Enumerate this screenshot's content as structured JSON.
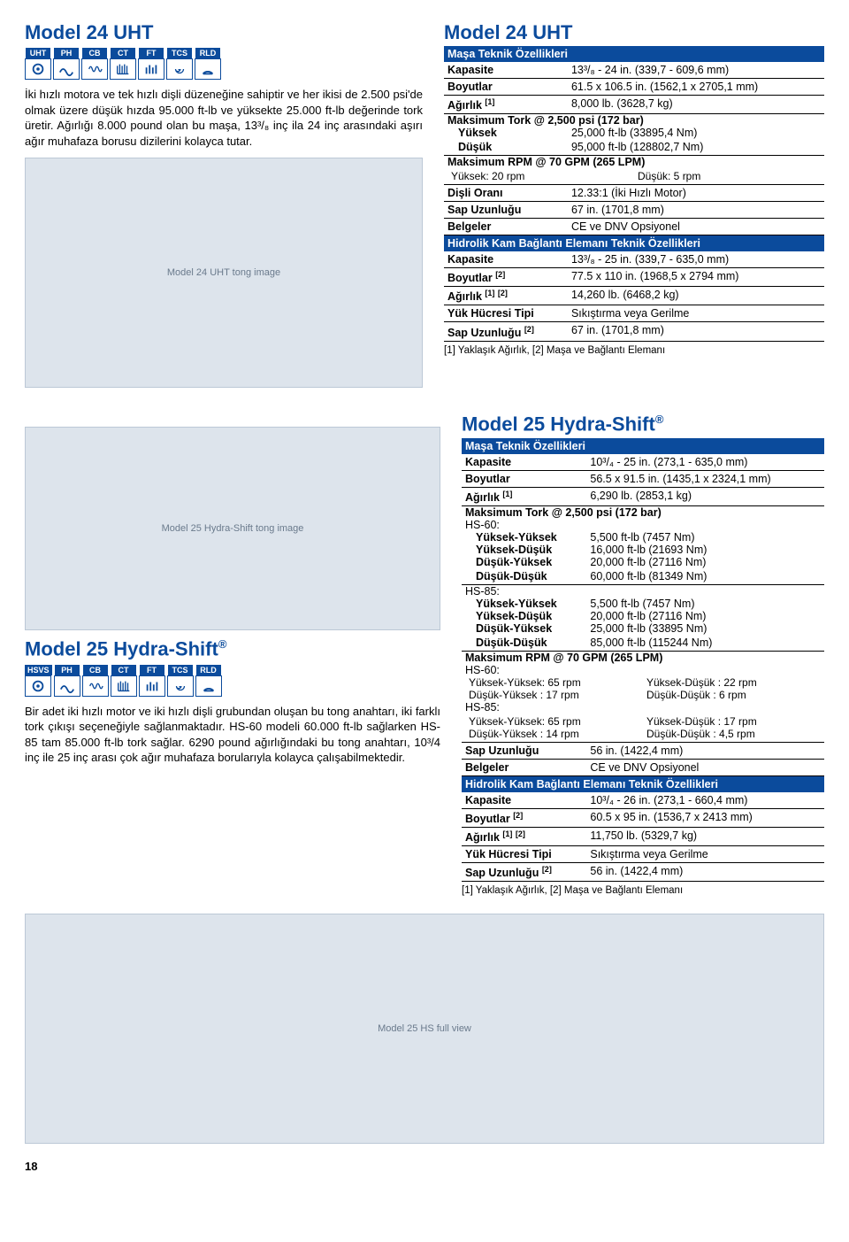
{
  "colors": {
    "brand": "#0b4b9c",
    "text": "#000000",
    "bg": "#ffffff"
  },
  "model1": {
    "title": "Model 24 UHT",
    "badges": [
      "UHT",
      "PH",
      "CB",
      "CT",
      "FT",
      "TCS",
      "RLD"
    ],
    "desc": "İki hızlı motora ve tek hızlı dişli düzeneğine sahiptir ve her ikisi de 2.500 psi'de olmak üzere düşük hızda 95.000 ft-lb ve yüksekte 25.000 ft-lb değerinde tork üretir. Ağırlığı 8.000 pound olan bu maşa, 13³/₈ inç ila 24 inç arasındaki aşırı ağır muhafaza borusu dizilerini kolayca tutar.",
    "img_alt": "Model 24 UHT tong image"
  },
  "spec1": {
    "title": "Model 24 UHT",
    "header1": "Maşa Teknik Özellikleri",
    "rows1": [
      [
        "Kapasite",
        "13³/₈ - 24 in. (339,7 - 609,6 mm)"
      ],
      [
        "Boyutlar",
        "61.5 x 106.5 in. (1562,1 x 2705,1 mm)"
      ],
      [
        "Ağırlık [1]",
        "8,000 lb. (3628,7 kg)"
      ]
    ],
    "torque_hdr": "Maksimum Tork @ 2,500 psi (172 bar)",
    "torque_rows": [
      [
        "Yüksek",
        "25,000 ft-lb (33895,4 Nm)"
      ],
      [
        "Düşük",
        "95,000 ft-lb (128802,7 Nm)"
      ]
    ],
    "rpm_hdr": "Maksimum RPM @ 70 GPM (265 LPM)",
    "rpm_rows": [
      [
        "Yüksek: 20 rpm",
        "Düşük: 5 rpm"
      ]
    ],
    "rows2": [
      [
        "Dişli Oranı",
        "12.33:1 (İki Hızlı Motor)"
      ],
      [
        "Sap Uzunluğu",
        "67 in. (1701,8 mm)"
      ],
      [
        "Belgeler",
        "CE ve DNV Opsiyonel"
      ]
    ],
    "header2": "Hidrolik Kam Bağlantı Elemanı Teknik Özellikleri",
    "rows3": [
      [
        "Kapasite",
        "13³/₈ - 25 in. (339,7 - 635,0 mm)"
      ],
      [
        "Boyutlar [2]",
        "77.5 x 110 in. (1968,5 x 2794 mm)"
      ],
      [
        "Ağırlık [1] [2]",
        "14,260 lb. (6468,2 kg)"
      ],
      [
        "Yük Hücresi Tipi",
        "Sıkıştırma veya Gerilme"
      ],
      [
        "Sap Uzunluğu [2]",
        "67 in. (1701,8 mm)"
      ]
    ],
    "footnote": "[1] Yaklaşık Ağırlık, [2] Maşa ve Bağlantı Elemanı"
  },
  "model2": {
    "title": "Model 25 Hydra-Shift",
    "reg": "®",
    "badges": [
      "HSVS",
      "PH",
      "CB",
      "CT",
      "FT",
      "TCS",
      "RLD"
    ],
    "desc": "Bir adet iki hızlı motor ve iki hızlı dişli grubundan oluşan bu tong anahtarı, iki farklı tork çıkışı seçeneğiyle sağlanmaktadır. HS-60 modeli 60.000 ft-lb sağlarken HS-85 tam 85.000 ft-lb tork sağlar. 6290 pound ağırlığındaki bu tong anahtarı, 10³/4 inç ile 25 inç arası çok ağır muhafaza borularıyla kolayca çalışabilmektedir.",
    "img_alt": "Model 25 Hydra-Shift tong image",
    "img_wide_alt": "Model 25 HS full view"
  },
  "spec2": {
    "title": "Model 25 Hydra-Shift",
    "reg": "®",
    "header1": "Maşa Teknik Özellikleri",
    "rows1": [
      [
        "Kapasite",
        "10³/₄ - 25 in. (273,1 - 635,0 mm)"
      ],
      [
        "Boyutlar",
        "56.5 x 91.5 in. (1435,1 x 2324,1 mm)"
      ],
      [
        "Ağırlık [1]",
        "6,290 lb. (2853,1 kg)"
      ]
    ],
    "torque_hdr": "Maksimum Tork @ 2,500 psi (172 bar)",
    "hs60": "HS-60:",
    "hs60_rows": [
      [
        "Yüksek-Yüksek",
        "5,500 ft-lb (7457 Nm)"
      ],
      [
        "Yüksek-Düşük",
        "16,000 ft-lb (21693 Nm)"
      ],
      [
        "Düşük-Yüksek",
        "20,000 ft-lb (27116 Nm)"
      ],
      [
        "Düşük-Düşük",
        "60,000 ft-lb (81349 Nm)"
      ]
    ],
    "hs85": "HS-85:",
    "hs85_rows": [
      [
        "Yüksek-Yüksek",
        "5,500 ft-lb (7457 Nm)"
      ],
      [
        "Yüksek-Düşük",
        "20,000 ft-lb (27116 Nm)"
      ],
      [
        "Düşük-Yüksek",
        "25,000 ft-lb (33895 Nm)"
      ],
      [
        "Düşük-Düşük",
        "85,000 ft-lb (115244 Nm)"
      ]
    ],
    "rpm_hdr": "Maksimum RPM @ 70 GPM (265 LPM)",
    "rpm60": "HS-60:",
    "rpm60_rows": [
      [
        "Yüksek-Yüksek: 65 rpm",
        "Yüksek-Düşük : 22 rpm"
      ],
      [
        "Düşük-Yüksek : 17 rpm",
        "Düşük-Düşük : 6 rpm"
      ]
    ],
    "rpm85": "HS-85:",
    "rpm85_rows": [
      [
        "Yüksek-Yüksek: 65 rpm",
        "Yüksek-Düşük : 17 rpm"
      ],
      [
        "Düşük-Yüksek : 14 rpm",
        "Düşük-Düşük : 4,5 rpm"
      ]
    ],
    "rows2": [
      [
        "Sap Uzunluğu",
        "56 in. (1422,4 mm)"
      ],
      [
        "Belgeler",
        "CE ve DNV Opsiyonel"
      ]
    ],
    "header2": "Hidrolik Kam Bağlantı Elemanı Teknik Özellikleri",
    "rows3": [
      [
        "Kapasite",
        "10³/₄ - 26 in. (273,1 - 660,4 mm)"
      ],
      [
        "Boyutlar [2]",
        "60.5 x 95 in. (1536,7 x 2413 mm)"
      ],
      [
        "Ağırlık [1] [2]",
        "11,750 lb. (5329,7 kg)"
      ],
      [
        "Yük Hücresi Tipi",
        "Sıkıştırma veya Gerilme"
      ],
      [
        "Sap Uzunluğu [2]",
        "56 in. (1422,4 mm)"
      ]
    ],
    "footnote": "[1] Yaklaşık Ağırlık, [2] Maşa ve Bağlantı Elemanı"
  },
  "page_number": "18",
  "badge_icons": [
    "gear",
    "wave",
    "coil",
    "comb",
    "bars",
    "spiral",
    "arc"
  ]
}
